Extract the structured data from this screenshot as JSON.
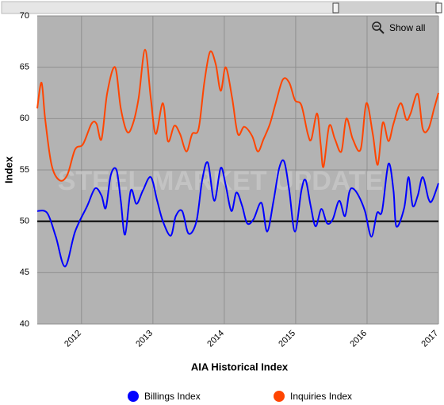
{
  "chart_data": {
    "type": "line",
    "x_label": "AIA Historical Index",
    "y_label": "Index",
    "watermark": "STEEL MARKET UPDATE",
    "button": "Show all",
    "xlim": [
      2011.38,
      2017.0
    ],
    "xticks": [
      2012,
      2013,
      2014,
      2015,
      2016,
      2017
    ],
    "ylim": [
      40,
      70
    ],
    "yticks": [
      40,
      45,
      50,
      55,
      60,
      65,
      70
    ],
    "reference_line": 50,
    "grid": true,
    "legend": "bottom",
    "series": [
      {
        "name": "Billings Index",
        "color": "#0000ff",
        "x": [
          2011.38,
          2011.52,
          2011.64,
          2011.77,
          2011.91,
          2012.08,
          2012.19,
          2012.28,
          2012.34,
          2012.41,
          2012.49,
          2012.55,
          2012.61,
          2012.69,
          2012.77,
          2012.86,
          2012.97,
          2013.06,
          2013.14,
          2013.25,
          2013.32,
          2013.41,
          2013.5,
          2013.61,
          2013.69,
          2013.77,
          2013.86,
          2013.95,
          2014.02,
          2014.1,
          2014.17,
          2014.25,
          2014.32,
          2014.41,
          2014.52,
          2014.6,
          2014.69,
          2014.77,
          2014.84,
          2014.91,
          2014.99,
          2015.08,
          2015.14,
          2015.21,
          2015.28,
          2015.36,
          2015.44,
          2015.52,
          2015.61,
          2015.69,
          2015.75,
          2015.8,
          2015.88,
          2015.97,
          2016.06,
          2016.14,
          2016.21,
          2016.3,
          2016.37,
          2016.41,
          2016.52,
          2016.58,
          2016.64,
          2016.71,
          2016.78,
          2016.86,
          2016.91,
          2017.0
        ],
        "values": [
          51,
          50.8,
          48.5,
          45.6,
          49,
          51.5,
          53.2,
          52.5,
          51.3,
          54.5,
          55,
          52,
          48.7,
          53,
          51.7,
          53,
          54.3,
          52,
          50,
          48.6,
          50.5,
          51,
          48.8,
          50,
          54,
          55.7,
          52,
          55.2,
          53.5,
          51,
          52.8,
          51.5,
          49.8,
          50.2,
          51.8,
          49,
          52,
          55.2,
          55.8,
          53,
          49,
          53,
          54,
          51.5,
          49.5,
          51.2,
          49.8,
          50.2,
          52,
          50.5,
          52.8,
          53.2,
          52.5,
          51,
          48.5,
          50.8,
          51,
          55.6,
          53,
          49.5,
          51.3,
          54.3,
          51.5,
          52.5,
          54.3,
          52.2,
          52,
          53.7
        ]
      },
      {
        "name": "Inquiries Index",
        "color": "#ff4500",
        "x": [
          2011.38,
          2011.44,
          2011.49,
          2011.58,
          2011.69,
          2011.8,
          2011.91,
          2012.02,
          2012.14,
          2012.21,
          2012.28,
          2012.36,
          2012.47,
          2012.55,
          2012.64,
          2012.72,
          2012.8,
          2012.89,
          2012.97,
          2013.04,
          2013.14,
          2013.21,
          2013.3,
          2013.38,
          2013.47,
          2013.55,
          2013.64,
          2013.72,
          2013.8,
          2013.88,
          2013.95,
          2014.02,
          2014.11,
          2014.19,
          2014.28,
          2014.39,
          2014.47,
          2014.55,
          2014.64,
          2014.72,
          2014.82,
          2014.91,
          2014.99,
          2015.08,
          2015.17,
          2015.22,
          2015.3,
          2015.35,
          2015.39,
          2015.47,
          2015.55,
          2015.64,
          2015.71,
          2015.8,
          2015.91,
          2015.99,
          2016.08,
          2016.15,
          2016.22,
          2016.3,
          2016.37,
          2016.47,
          2016.55,
          2016.61,
          2016.71,
          2016.78,
          2016.86,
          2016.94,
          2017.0
        ],
        "values": [
          61,
          63.5,
          60,
          55.5,
          54,
          54.5,
          57,
          57.5,
          59.5,
          59.5,
          58,
          62.5,
          65,
          61,
          58.7,
          59.5,
          62,
          66.7,
          62,
          58.5,
          61.5,
          57.8,
          59.3,
          58.5,
          56.8,
          58.5,
          59,
          63.5,
          66.5,
          65.3,
          62.7,
          65,
          62,
          58.5,
          59.2,
          58.3,
          56.8,
          58,
          59.5,
          61.5,
          63.8,
          63.5,
          61.8,
          61.3,
          58.5,
          58,
          60.5,
          57.5,
          55.3,
          59.3,
          58,
          56.8,
          60,
          58,
          57,
          61.5,
          58.5,
          55.5,
          59.6,
          57.8,
          59.5,
          61.5,
          59.9,
          60.5,
          62.4,
          59,
          59,
          61,
          62.5
        ]
      }
    ]
  }
}
